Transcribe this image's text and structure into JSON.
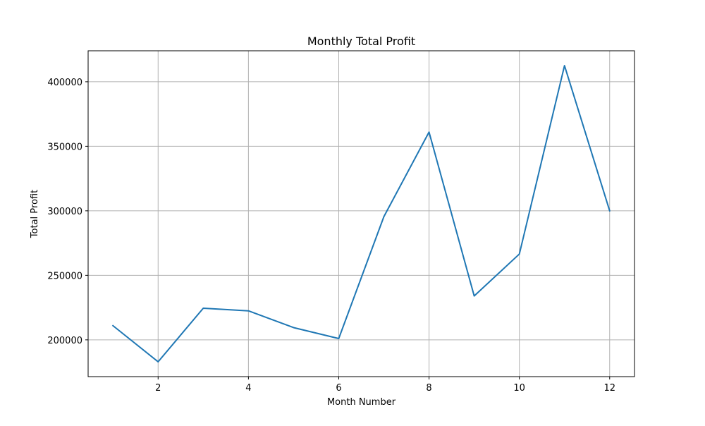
{
  "chart_data": {
    "type": "line",
    "title": "Monthly Total Profit",
    "xlabel": "Month Number",
    "ylabel": "Total Profit",
    "x": [
      1,
      2,
      3,
      4,
      5,
      6,
      7,
      8,
      9,
      10,
      11,
      12
    ],
    "series": [
      {
        "values": [
          211000,
          183000,
          224500,
          222500,
          209500,
          201000,
          295500,
          361000,
          234000,
          266500,
          412500,
          300000
        ],
        "color": "#1f77b4"
      }
    ],
    "xlim": [
      0.45,
      12.55
    ],
    "ylim": [
      171500,
      424000
    ],
    "xticks": [
      2,
      4,
      6,
      8,
      10,
      12
    ],
    "yticks": [
      200000,
      250000,
      300000,
      350000,
      400000
    ],
    "grid": true
  }
}
